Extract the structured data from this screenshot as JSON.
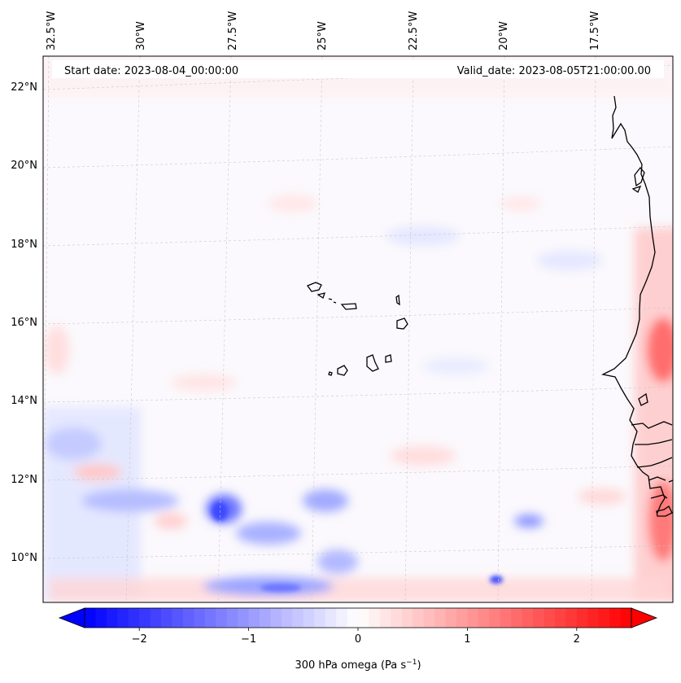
{
  "header": {
    "start_date": "Start date: 2023-08-04_00:00:00",
    "valid_date": "Valid_date: 2023-08-05T21:00:00.00"
  },
  "map": {
    "longitude_labels": [
      "32.5°W",
      "30°W",
      "27.5°W",
      "25°W",
      "22.5°W",
      "20°W",
      "17.5°W"
    ],
    "latitude_labels": [
      "22°N",
      "20°N",
      "18°N",
      "16°N",
      "14°N",
      "12°N",
      "10°N"
    ]
  },
  "colorbar": {
    "ticks": [
      "−2",
      "−1",
      "0",
      "1",
      "2"
    ],
    "tick_values": [
      -2,
      -1,
      0,
      1,
      2
    ],
    "range": [
      -2.5,
      2.5
    ],
    "label": "300 hPa omega (Pa s",
    "label_exp": "−1",
    "label_end": ")",
    "colors": {
      "low": "#0000ff",
      "mid": "#ffffff",
      "high": "#ff0000"
    }
  }
}
